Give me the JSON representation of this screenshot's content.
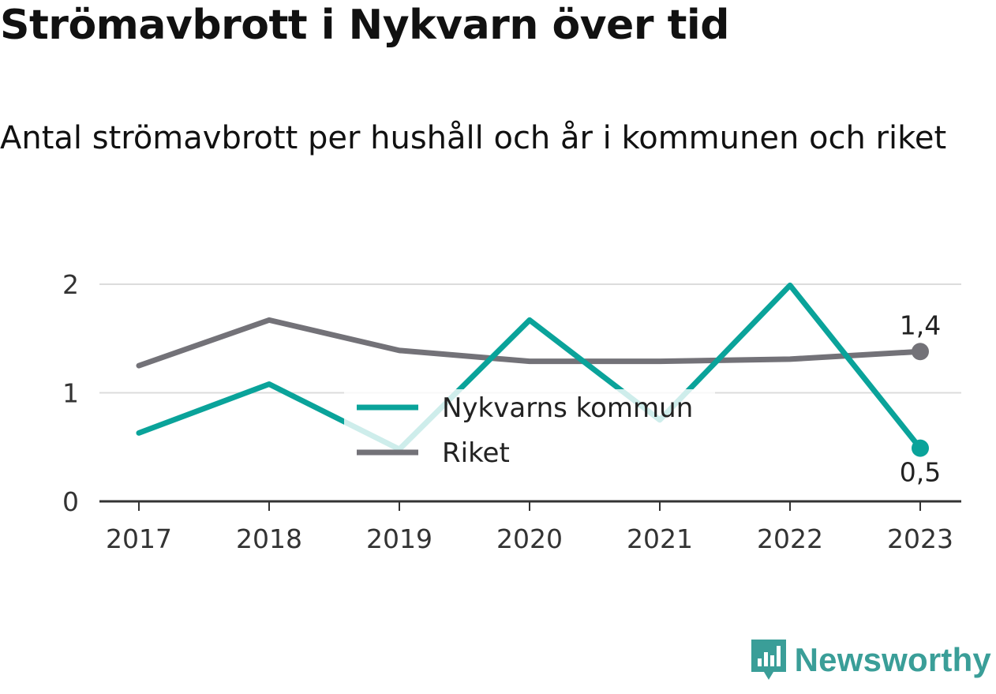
{
  "chart_data": {
    "type": "line",
    "title": "Strömavbrott i Nykvarn över tid",
    "subtitle": "Antal strömavbrott per hushåll och år i kommunen och riket",
    "categories": [
      "2017",
      "2018",
      "2019",
      "2020",
      "2021",
      "2022",
      "2023"
    ],
    "ylim": [
      0,
      2
    ],
    "yticks": [
      "0",
      "1",
      "2"
    ],
    "grid": true,
    "legend_position": "center",
    "series": [
      {
        "name": "Nykvarns kommun",
        "color": "#0aa39a",
        "values": [
          0.63,
          1.08,
          0.48,
          1.67,
          0.75,
          1.99,
          0.49
        ],
        "end_label": "0,5"
      },
      {
        "name": "Riket",
        "color": "#737278",
        "values": [
          1.25,
          1.67,
          1.39,
          1.29,
          1.29,
          1.31,
          1.38
        ],
        "end_label": "1,4"
      }
    ]
  },
  "brand": {
    "name": "Newsworthy",
    "icon": "newsworthy-logo-icon",
    "color": "#3a9e98"
  }
}
